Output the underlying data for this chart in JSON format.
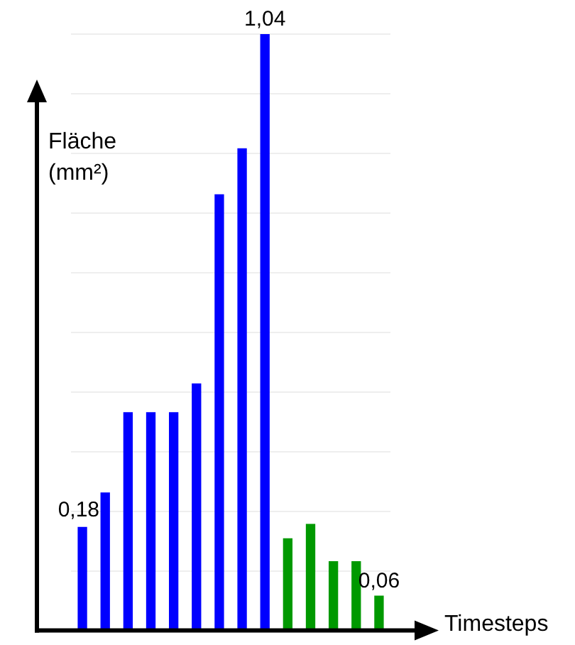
{
  "chart_data": {
    "type": "bar",
    "xlabel": "Timesteps",
    "ylabel": "Fläche (mm²)",
    "categories": [
      null,
      null,
      null,
      null,
      null,
      null,
      null,
      null,
      null,
      null,
      null,
      null,
      null,
      null
    ],
    "values": [
      0.18,
      0.24,
      0.38,
      0.38,
      0.38,
      0.43,
      0.76,
      0.84,
      1.04,
      0.16,
      0.185,
      0.12,
      0.12,
      0.06
    ],
    "colors": [
      "#0000ff",
      "#0000ff",
      "#0000ff",
      "#0000ff",
      "#0000ff",
      "#0000ff",
      "#0000ff",
      "#0000ff",
      "#0000ff",
      "#009900",
      "#009900",
      "#009900",
      "#009900",
      "#009900"
    ],
    "value_labels": [
      "0,18",
      null,
      null,
      null,
      null,
      null,
      null,
      null,
      "1,04",
      null,
      null,
      null,
      null,
      "0,06"
    ],
    "ylim": [
      0,
      1.04
    ],
    "yticks": [
      {
        "value": 0,
        "label": null
      },
      {
        "value": 0.104,
        "label": null
      },
      {
        "value": 0.208,
        "label": null
      },
      {
        "value": 0.312,
        "label": null
      },
      {
        "value": 0.416,
        "label": null
      },
      {
        "value": 0.52,
        "label": null
      },
      {
        "value": 0.624,
        "label": null
      },
      {
        "value": 0.728,
        "label": null
      },
      {
        "value": 0.832,
        "label": null
      },
      {
        "value": 0.936,
        "label": null
      },
      {
        "value": 1.04,
        "label": null
      }
    ],
    "grid": "y",
    "legend": false
  }
}
